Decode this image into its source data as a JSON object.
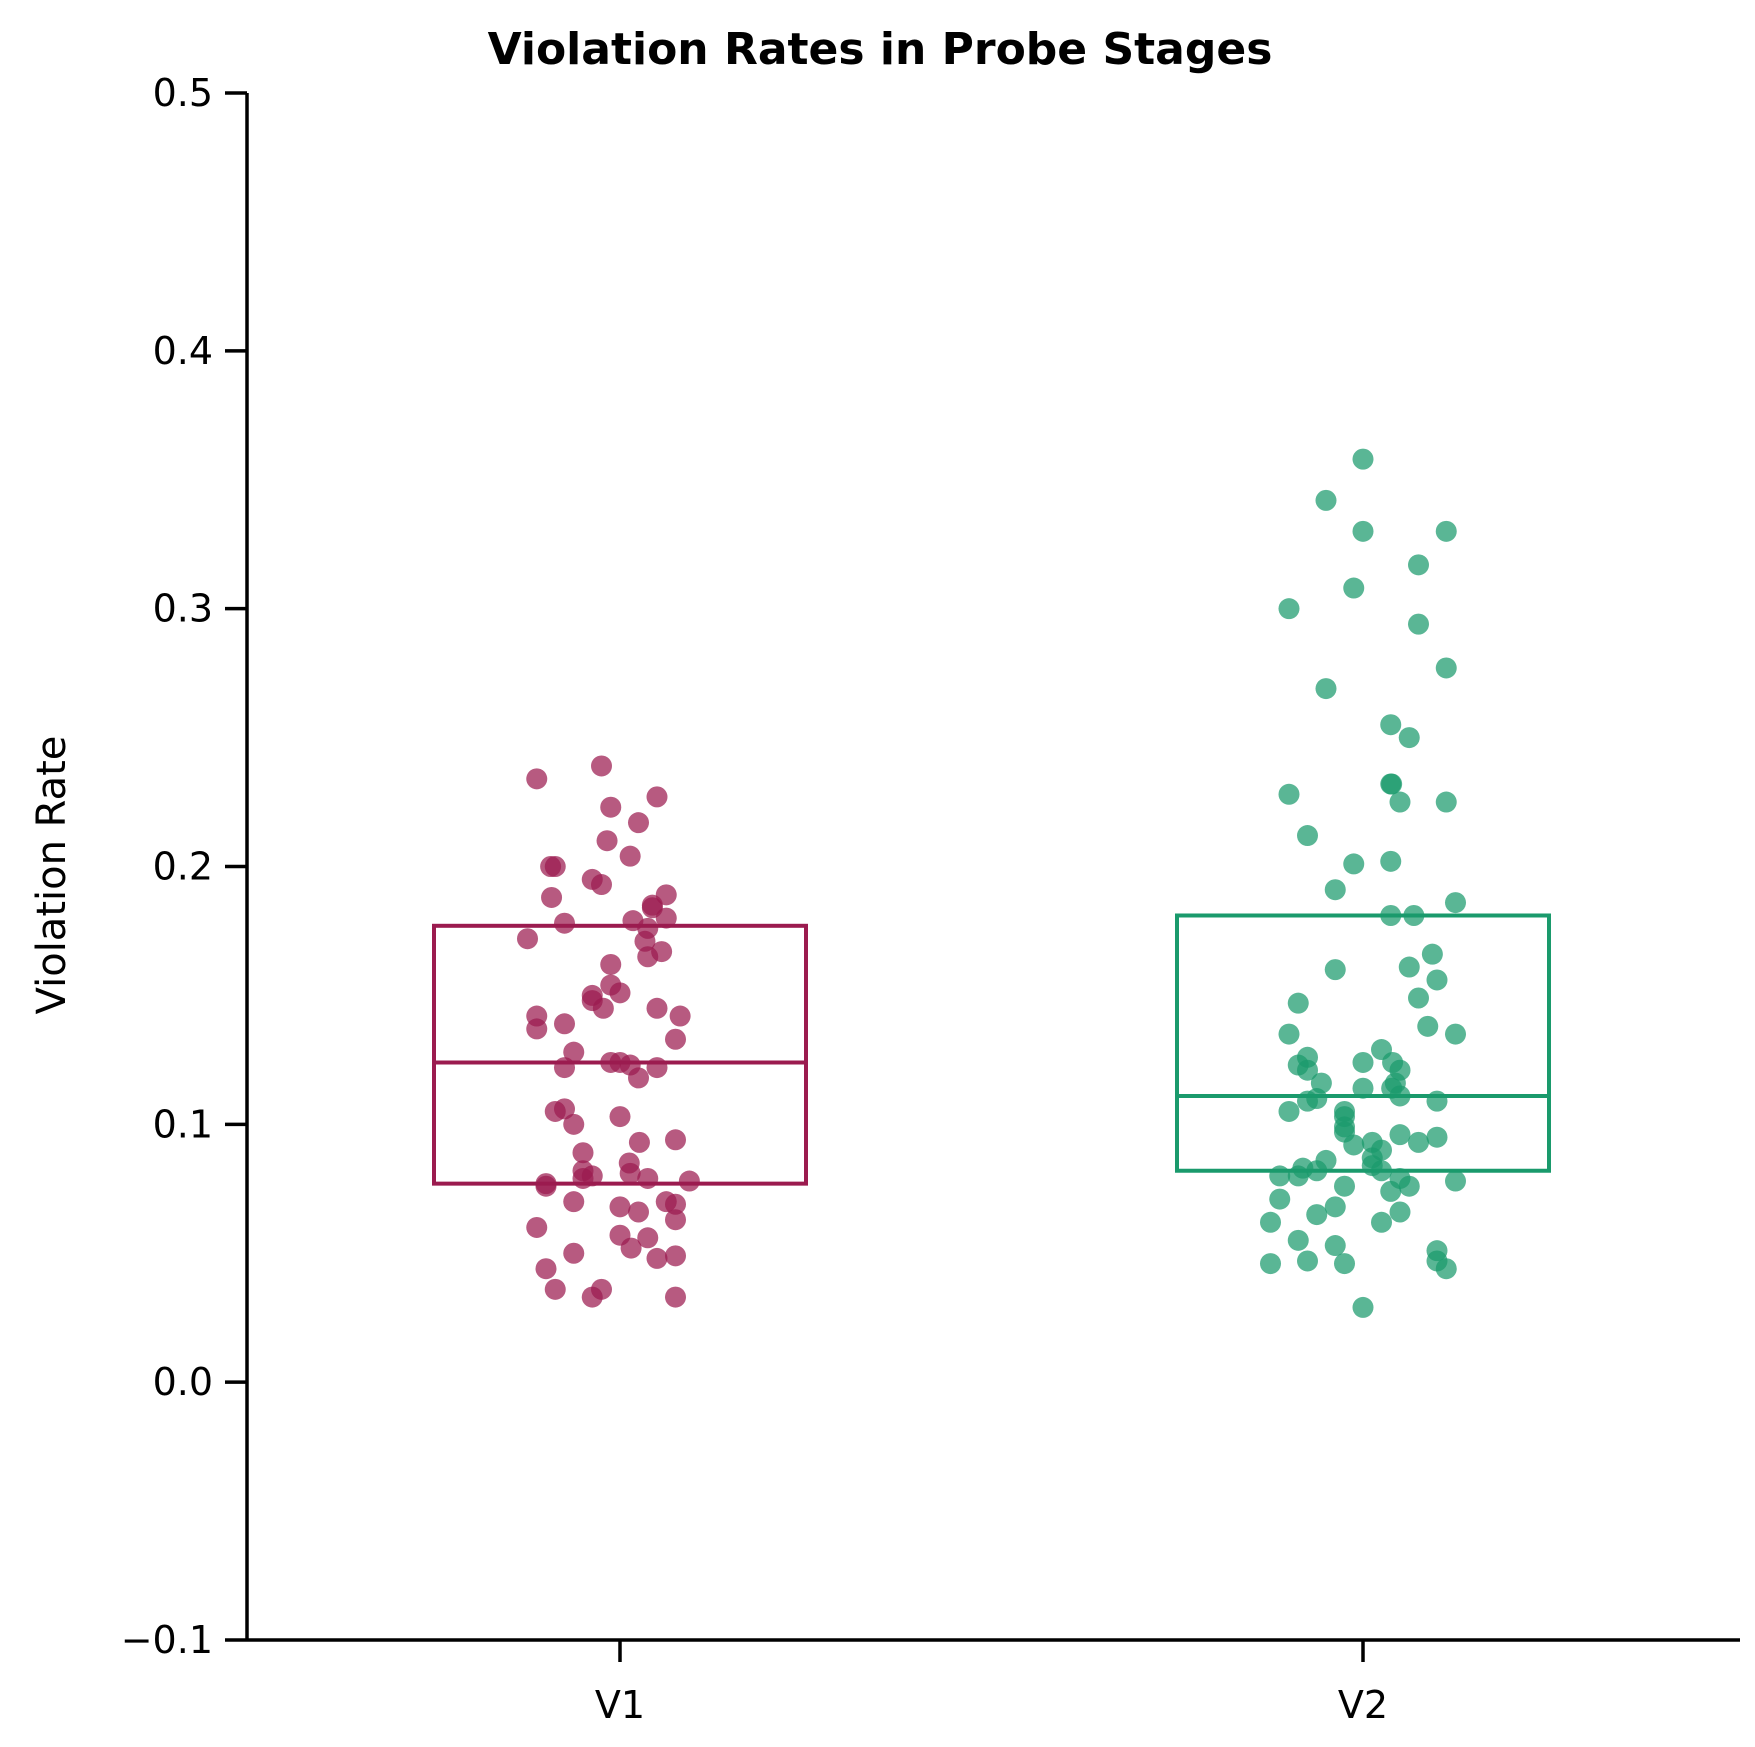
{
  "chart_data": {
    "type": "scatter",
    "subtype": "box-with-jittered-points",
    "title": "Violation Rates in Probe Stages",
    "xlabel": "",
    "ylabel": "Violation Rate",
    "ylim": [
      -0.1,
      0.5
    ],
    "yticks": [
      -0.1,
      0.0,
      0.1,
      0.2,
      0.3,
      0.4,
      0.5
    ],
    "ytick_labels": [
      "−0.1",
      "0.0",
      "0.1",
      "0.2",
      "0.3",
      "0.4",
      "0.5"
    ],
    "categories": [
      "V1",
      "V2"
    ],
    "grid": false,
    "series": [
      {
        "name": "V1",
        "color": "#9b1b4f",
        "box": {
          "q1": 0.077,
          "median": 0.124,
          "q3": 0.177
        },
        "points": [
          [
            -0.09,
            0.234
          ],
          [
            -0.02,
            0.239
          ],
          [
            -0.01,
            0.223
          ],
          [
            0.04,
            0.227
          ],
          [
            0.02,
            0.217
          ],
          [
            -0.014,
            0.21
          ],
          [
            -0.075,
            0.2
          ],
          [
            -0.07,
            0.2
          ],
          [
            0.011,
            0.204
          ],
          [
            -0.02,
            0.193
          ],
          [
            -0.03,
            0.195
          ],
          [
            -0.074,
            0.188
          ],
          [
            0.05,
            0.189
          ],
          [
            0.035,
            0.184
          ],
          [
            0.035,
            0.185
          ],
          [
            -0.06,
            0.178
          ],
          [
            0.014,
            0.179
          ],
          [
            0.03,
            0.176
          ],
          [
            0.05,
            0.18
          ],
          [
            -0.1,
            0.172
          ],
          [
            0.027,
            0.171
          ],
          [
            0.045,
            0.167
          ],
          [
            0.03,
            0.165
          ],
          [
            -0.01,
            0.162
          ],
          [
            -0.01,
            0.154
          ],
          [
            0.0,
            0.151
          ],
          [
            -0.03,
            0.148
          ],
          [
            -0.03,
            0.15
          ],
          [
            -0.018,
            0.145
          ],
          [
            0.04,
            0.145
          ],
          [
            -0.09,
            0.142
          ],
          [
            0.065,
            0.142
          ],
          [
            -0.06,
            0.139
          ],
          [
            -0.09,
            0.137
          ],
          [
            0.06,
            0.133
          ],
          [
            -0.05,
            0.128
          ],
          [
            -0.01,
            0.124
          ],
          [
            0.0,
            0.124
          ],
          [
            0.011,
            0.123
          ],
          [
            0.04,
            0.122
          ],
          [
            -0.06,
            0.122
          ],
          [
            0.02,
            0.118
          ],
          [
            -0.06,
            0.106
          ],
          [
            -0.07,
            0.105
          ],
          [
            0.0,
            0.103
          ],
          [
            -0.05,
            0.1
          ],
          [
            0.021,
            0.093
          ],
          [
            0.06,
            0.094
          ],
          [
            -0.04,
            0.089
          ],
          [
            0.01,
            0.085
          ],
          [
            -0.04,
            0.082
          ],
          [
            -0.04,
            0.079
          ],
          [
            -0.03,
            0.08
          ],
          [
            0.011,
            0.081
          ],
          [
            0.03,
            0.079
          ],
          [
            -0.08,
            0.077
          ],
          [
            -0.08,
            0.076
          ],
          [
            0.075,
            0.078
          ],
          [
            -0.05,
            0.07
          ],
          [
            0.05,
            0.07
          ],
          [
            0.06,
            0.069
          ],
          [
            0.0,
            0.068
          ],
          [
            0.02,
            0.066
          ],
          [
            -0.09,
            0.06
          ],
          [
            0.06,
            0.063
          ],
          [
            0.0,
            0.057
          ],
          [
            0.03,
            0.056
          ],
          [
            0.012,
            0.052
          ],
          [
            -0.05,
            0.05
          ],
          [
            0.04,
            0.048
          ],
          [
            0.06,
            0.049
          ],
          [
            -0.08,
            0.044
          ],
          [
            -0.07,
            0.036
          ],
          [
            -0.02,
            0.036
          ],
          [
            -0.03,
            0.033
          ],
          [
            0.06,
            0.033
          ]
        ]
      },
      {
        "name": "V2",
        "color": "#1a9a6c",
        "box": {
          "q1": 0.082,
          "median": 0.111,
          "q3": 0.181
        },
        "points": [
          [
            0.0,
            0.358
          ],
          [
            -0.04,
            0.342
          ],
          [
            0.0,
            0.33
          ],
          [
            0.09,
            0.33
          ],
          [
            0.06,
            0.317
          ],
          [
            -0.01,
            0.308
          ],
          [
            -0.08,
            0.3
          ],
          [
            0.06,
            0.294
          ],
          [
            0.09,
            0.277
          ],
          [
            -0.04,
            0.269
          ],
          [
            0.03,
            0.255
          ],
          [
            0.05,
            0.25
          ],
          [
            0.031,
            0.232
          ],
          [
            0.03,
            0.232
          ],
          [
            -0.08,
            0.228
          ],
          [
            0.04,
            0.225
          ],
          [
            0.09,
            0.225
          ],
          [
            -0.06,
            0.212
          ],
          [
            -0.01,
            0.201
          ],
          [
            0.03,
            0.202
          ],
          [
            -0.03,
            0.191
          ],
          [
            0.1,
            0.186
          ],
          [
            0.03,
            0.181
          ],
          [
            0.055,
            0.181
          ],
          [
            0.075,
            0.166
          ],
          [
            -0.03,
            0.16
          ],
          [
            0.05,
            0.161
          ],
          [
            0.08,
            0.156
          ],
          [
            0.06,
            0.149
          ],
          [
            -0.07,
            0.147
          ],
          [
            0.07,
            0.138
          ],
          [
            -0.08,
            0.135
          ],
          [
            0.1,
            0.135
          ],
          [
            0.02,
            0.129
          ],
          [
            -0.06,
            0.126
          ],
          [
            0.032,
            0.124
          ],
          [
            -0.07,
            0.123
          ],
          [
            0.04,
            0.121
          ],
          [
            -0.06,
            0.121
          ],
          [
            0.0,
            0.124
          ],
          [
            -0.045,
            0.116
          ],
          [
            0.035,
            0.116
          ],
          [
            0.031,
            0.114
          ],
          [
            0.0,
            0.114
          ],
          [
            0.04,
            0.111
          ],
          [
            0.08,
            0.109
          ],
          [
            -0.06,
            0.109
          ],
          [
            -0.05,
            0.11
          ],
          [
            -0.08,
            0.105
          ],
          [
            -0.02,
            0.105
          ],
          [
            -0.02,
            0.103
          ],
          [
            -0.02,
            0.099
          ],
          [
            -0.02,
            0.097
          ],
          [
            0.04,
            0.096
          ],
          [
            0.01,
            0.093
          ],
          [
            0.06,
            0.093
          ],
          [
            0.08,
            0.095
          ],
          [
            -0.01,
            0.092
          ],
          [
            0.02,
            0.09
          ],
          [
            0.01,
            0.087
          ],
          [
            -0.04,
            0.086
          ],
          [
            0.01,
            0.084
          ],
          [
            -0.05,
            0.082
          ],
          [
            -0.065,
            0.083
          ],
          [
            0.02,
            0.082
          ],
          [
            -0.09,
            0.08
          ],
          [
            0.04,
            0.079
          ],
          [
            -0.07,
            0.08
          ],
          [
            0.1,
            0.078
          ],
          [
            -0.02,
            0.076
          ],
          [
            0.05,
            0.076
          ],
          [
            0.03,
            0.074
          ],
          [
            -0.09,
            0.071
          ],
          [
            -0.03,
            0.068
          ],
          [
            -0.05,
            0.065
          ],
          [
            0.04,
            0.066
          ],
          [
            -0.1,
            0.062
          ],
          [
            0.02,
            0.062
          ],
          [
            -0.07,
            0.055
          ],
          [
            -0.03,
            0.053
          ],
          [
            0.08,
            0.051
          ],
          [
            -0.06,
            0.047
          ],
          [
            -0.1,
            0.046
          ],
          [
            -0.02,
            0.046
          ],
          [
            0.08,
            0.047
          ],
          [
            0.09,
            0.044
          ],
          [
            0.0,
            0.029
          ]
        ]
      }
    ]
  }
}
